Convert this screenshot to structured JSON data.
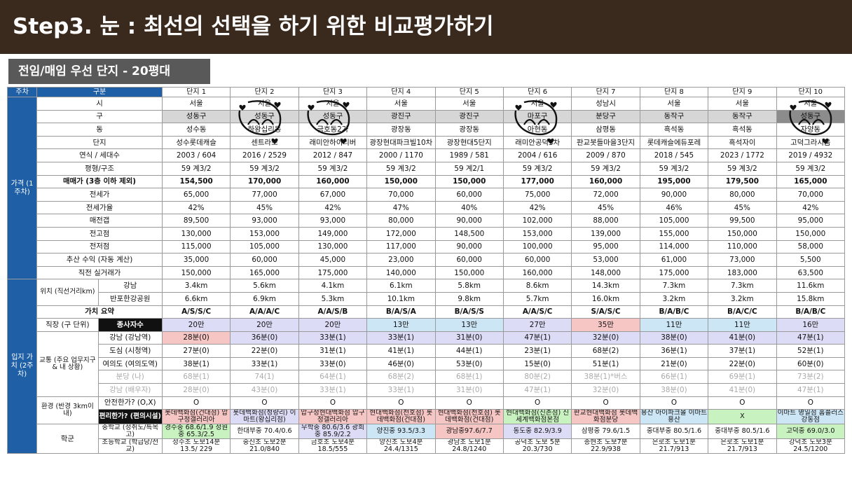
{
  "header": {
    "title": "Step3. 눈 : 최선의 선택을 하기 위한 비교평가하기",
    "subtitle": "전임/매임 우선 단지 - 20평대"
  },
  "table": {
    "columns": [
      "단지 1",
      "단지 2",
      "단지 3",
      "단지 4",
      "단지 5",
      "단지 6",
      "단지 7",
      "단지 8",
      "단지 9",
      "단지 10"
    ],
    "head": {
      "week": "주차",
      "category": "구분"
    },
    "groups": {
      "price": "가격 (1주차)",
      "location": "입지 가치 (2주차)",
      "position": "위치 (직선거리km)",
      "transport": "교통 (주요 업무지구 & 내 상황)",
      "environment": "환경 (반경 3km이내)",
      "school": "학군",
      "job_center": "직장 (구 단위)",
      "workers": "종사자수"
    },
    "rows": {
      "si": {
        "label": "시",
        "values": [
          "서울",
          "서울",
          "서울",
          "서울",
          "서울",
          "서울",
          "성남시",
          "서울",
          "서울",
          "서울"
        ]
      },
      "gu": {
        "label": "구",
        "values": [
          "성동구",
          "성동구",
          "성동구",
          "광진구",
          "광진구",
          "마포구",
          "분당구",
          "동작구",
          "동작구",
          "성동구"
        ]
      },
      "dong": {
        "label": "동",
        "values": [
          "성수동",
          "하왕십리동",
          "금호동2가",
          "광장동",
          "광장동",
          "아현동",
          "삼평동",
          "흑석동",
          "흑석동",
          "자양동"
        ]
      },
      "danji": {
        "label": "단지",
        "values": [
          "성수롯데캐슬",
          "센트라스",
          "래미안하이리버",
          "광장현대파크빌10차",
          "광장현대5단지",
          "래미안공덕3차",
          "판교봇들마을3단지",
          "롯데캐슬에듀포레",
          "흑석자이",
          "고덕그라시움"
        ]
      },
      "year": {
        "label": "연식 / 세대수",
        "values": [
          "2003 / 604",
          "2016 / 2529",
          "2012 / 847",
          "2000 / 1170",
          "1989 / 581",
          "2004 / 616",
          "2009 / 870",
          "2018 / 545",
          "2023 / 1772",
          "2019 / 4932"
        ]
      },
      "size": {
        "label": "평형/구조",
        "values": [
          "59 계3/2",
          "59 계3/2",
          "59 계3/2",
          "59 계3/2",
          "59 계2/1",
          "59 계3/2",
          "59 계3/2",
          "59 계3/2",
          "59 계3/2",
          "59 계3/2"
        ]
      },
      "sale": {
        "label": "매매가 (3층 이하 제외)",
        "values": [
          "154,500",
          "170,000",
          "160,000",
          "150,000",
          "150,000",
          "177,000",
          "160,000",
          "195,000",
          "179,500",
          "165,000"
        ]
      },
      "jeonse": {
        "label": "전세가",
        "values": [
          "65,000",
          "77,000",
          "67,000",
          "70,000",
          "60,000",
          "75,000",
          "72,000",
          "90,000",
          "80,000",
          "70,000"
        ]
      },
      "jeonse_rate": {
        "label": "전세가율",
        "values": [
          "42%",
          "45%",
          "42%",
          "47%",
          "40%",
          "42%",
          "45%",
          "46%",
          "45%",
          "42%"
        ]
      },
      "gap": {
        "label": "매전갭",
        "values": [
          "89,500",
          "93,000",
          "93,000",
          "80,000",
          "90,000",
          "102,000",
          "88,000",
          "105,000",
          "99,500",
          "95,000"
        ]
      },
      "high": {
        "label": "전고점",
        "values": [
          "130,000",
          "153,000",
          "149,000",
          "172,000",
          "148,500",
          "153,000",
          "139,000",
          "155,000",
          "150,000",
          "150,000"
        ]
      },
      "low": {
        "label": "전저점",
        "values": [
          "115,000",
          "105,000",
          "130,000",
          "117,000",
          "90,000",
          "100,000",
          "95,000",
          "114,000",
          "110,000",
          "58,000"
        ]
      },
      "profit": {
        "label": "추산 수익 (자동 계산)",
        "values": [
          "35,000",
          "60,000",
          "45,000",
          "23,000",
          "60,000",
          "60,000",
          "53,000",
          "61,000",
          "73,000",
          "5,500"
        ]
      },
      "recent": {
        "label": "직전 실거래가",
        "values": [
          "150,000",
          "165,000",
          "175,000",
          "140,000",
          "150,000",
          "160,000",
          "148,000",
          "175,000",
          "183,000",
          "63,500"
        ]
      },
      "gangnam_dist": {
        "label": "강남",
        "values": [
          "3.4km",
          "5.6km",
          "4.1km",
          "6.1km",
          "5.8km",
          "8.6km",
          "14.3km",
          "7.3km",
          "7.3km",
          "11.6km"
        ]
      },
      "banpo_dist": {
        "label": "반포한강공원",
        "values": [
          "6.6km",
          "6.9km",
          "5.3km",
          "10.1km",
          "9.8km",
          "5.7km",
          "16.0km",
          "3.2km",
          "3.2km",
          "15.8km"
        ]
      },
      "value": {
        "label": "가치 요약",
        "values": [
          "A/S/S/C",
          "A/A/A/C",
          "A/A/S/B",
          "B/A/S/A",
          "B/A/S/S",
          "A/A/S/C",
          "S/A/S/C",
          "B/A/B/C",
          "B/A/C/C",
          "B/A/B/C"
        ]
      },
      "workers_count": {
        "values": [
          "20만",
          "20만",
          "20만",
          "13만",
          "13만",
          "27만",
          "35만",
          "11만",
          "11만",
          "16만"
        ]
      },
      "t_gangnam": {
        "label": "강남 (강남역)",
        "values": [
          "28분(0)",
          "36분(0)",
          "33분(1)",
          "33분(1)",
          "31분(0)",
          "47분(1)",
          "32분(0)",
          "38분(0)",
          "41분(0)",
          "47분(1)"
        ]
      },
      "t_city": {
        "label": "도심 (시청역)",
        "values": [
          "27분(0)",
          "22분(0)",
          "31분(1)",
          "41분(1)",
          "44분(1)",
          "23분(1)",
          "68분(2)",
          "36분(1)",
          "37분(1)",
          "52분(1)"
        ]
      },
      "t_yeouido": {
        "label": "여의도 (여의도역)",
        "values": [
          "38분(1)",
          "33분(1)",
          "33분(0)",
          "46분(0)",
          "53분(0)",
          "15분(0)",
          "51분(1)",
          "21분(0)",
          "22분(0)",
          "60분(0)"
        ]
      },
      "t_bundang": {
        "label": "분당 (나)",
        "values": [
          "68분(1)",
          "74(1)",
          "64분(1)",
          "68분(2)",
          "68분(1)",
          "80분(2)",
          "38분(1)*버스",
          "66분(1)",
          "69분(1)",
          "73분(2)"
        ]
      },
      "t_gangnam2": {
        "label": "강남 (배우자)",
        "values": [
          "28분(0)",
          "43분(0)",
          "33분(1)",
          "33분(1)",
          "31분(0)",
          "47분(1)",
          "32분(0)",
          "38분(0)",
          "41분(0)",
          "47분(1)"
        ]
      },
      "safe": {
        "label": "안전한가? (O,X)",
        "values": [
          "O",
          "O",
          "O",
          "O",
          "O",
          "O",
          "O",
          "O",
          "O",
          "O"
        ]
      },
      "conv": {
        "label": "편리한가? (편의시설)",
        "values": [
          "롯데백화점(건대점) 압구정갤러리아",
          "롯데백화점(청량리) 이마트(왕십리점)",
          "압구정현대백화점 압구정갤러리아",
          "현대백화점(천호점) 롯데백화점(건대점)",
          "현대백화점(천호점) 롯데백화점(건대점)",
          "현대백화점(신촌점) 신세계백화점본점",
          "판교현대백화점 롯데백화점분당",
          "용산 아이파크몰 이마트용산",
          "X",
          "이마트 명일점 홈플러스 강동점"
        ]
      },
      "middle": {
        "label": "중학교 (성취도/특목고)",
        "values": [
          "경수중 68.6/1.9 성원중 65.3/2.5",
          "한대부중 70.4/0.6",
          "무학중 80.6/3.6 광희중 85.9/2.2",
          "양진중 93.5/3.3",
          "광남중97.6/7.7",
          "동도중 82.9/3.9",
          "삼평중 79.6/1.5",
          "중대부중 80.5/1.6",
          "중대부중 80.5/1.6",
          "고덕중 69.0/3.0"
        ]
      },
      "elem": {
        "label": "초등학교 (학급당/전교)",
        "values": [
          "성수초 도보14분 13.5/ 229",
          "숭신초 도보2분 21.0/840",
          "금호초 도보4분 18.5/555",
          "양진초 도보4분 24.4/1315",
          "광남초 도보1분 24.8/1240",
          "공덕초 도보 5분 20.3/730",
          "송현초 도보7분 22.9/938",
          "은로초 도보1분 21.7/913",
          "은로초 도보1분 21.7/913",
          "강덕초 도보3분 24.5/1200"
        ]
      }
    }
  },
  "colors": {
    "banner_bg": "#3a2a1e",
    "subtitle_bg": "#595959",
    "side_header": "#1f5fa6",
    "highlight_pink": "#f6c6c4",
    "highlight_lavender": "#dcdcf6",
    "highlight_blue": "#cde6f5",
    "highlight_green": "#c9f2c1"
  },
  "annotations": {
    "doodle_icon": "hand-drawn-smiley-with-hearts",
    "marked_columns": [
      "단지 2",
      "단지 3",
      "단지 6",
      "단지 10"
    ]
  }
}
